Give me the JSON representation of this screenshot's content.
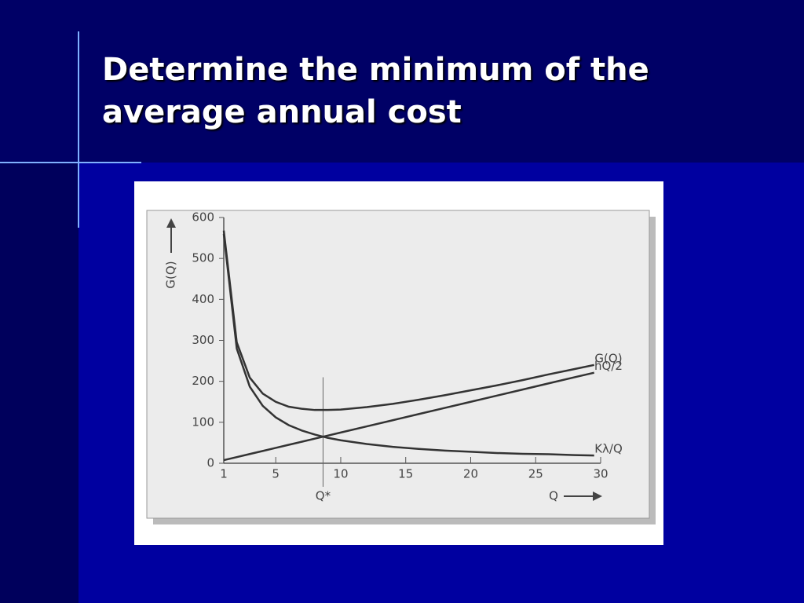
{
  "slide_title": "Determine the minimum of the average annual cost",
  "chart_data": {
    "type": "line",
    "x_label": "Q",
    "y_label": "G(Q)",
    "x": [
      1,
      2,
      3,
      4,
      5,
      6,
      7,
      8,
      9,
      10,
      12,
      14,
      16,
      18,
      20,
      22,
      24,
      26,
      28,
      29.5
    ],
    "series": [
      {
        "name": "G(Q)",
        "color": "#333333",
        "values": [
          568,
          295,
          209,
          170,
          150,
          138,
          133,
          130,
          130,
          131,
          137,
          145,
          155,
          166,
          178,
          190,
          203,
          217,
          230,
          240
        ]
      },
      {
        "name": "hQ/2",
        "color": "#333333",
        "values": [
          7.5,
          15,
          22.5,
          30,
          37.5,
          45,
          52.5,
          60,
          67.5,
          75,
          90,
          105,
          120,
          135,
          150,
          165,
          180,
          195,
          210,
          221
        ]
      },
      {
        "name": "Kλ/Q",
        "color": "#333333",
        "values": [
          560,
          280,
          187,
          140,
          112,
          93,
          80,
          70,
          62,
          56,
          47,
          40,
          35,
          31,
          28,
          25,
          23,
          22,
          20,
          19
        ]
      }
    ],
    "annotation": {
      "label": "Q*",
      "x": 8.64
    },
    "xlim": [
      1,
      30
    ],
    "ylim": [
      0,
      600
    ],
    "xticks": [
      1,
      5,
      10,
      15,
      20,
      25,
      30
    ],
    "yticks": [
      0,
      100,
      200,
      300,
      400,
      500,
      600
    ]
  }
}
